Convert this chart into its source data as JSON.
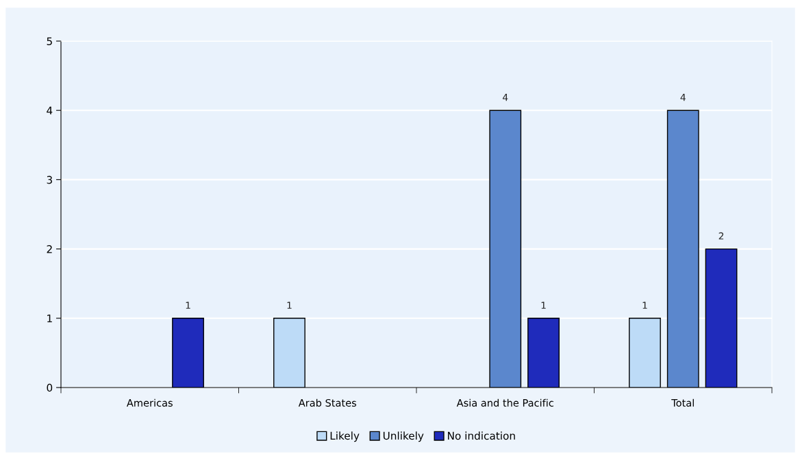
{
  "chart_data": {
    "type": "bar",
    "categories": [
      "Americas",
      "Arab States",
      "Asia and the Pacific",
      "Total"
    ],
    "series": [
      {
        "name": "Likely",
        "color": "#bddbf7",
        "values": [
          null,
          1,
          null,
          1
        ]
      },
      {
        "name": "Unlikely",
        "color": "#5b87cd",
        "values": [
          null,
          null,
          4,
          4
        ]
      },
      {
        "name": "No indication",
        "color": "#1f2bbb",
        "values": [
          1,
          null,
          1,
          2
        ]
      }
    ],
    "ylim": [
      0,
      5
    ],
    "yticks": [
      0,
      1,
      2,
      3,
      4,
      5
    ],
    "grid": "y",
    "legend": "bottom",
    "data_labels": true
  }
}
